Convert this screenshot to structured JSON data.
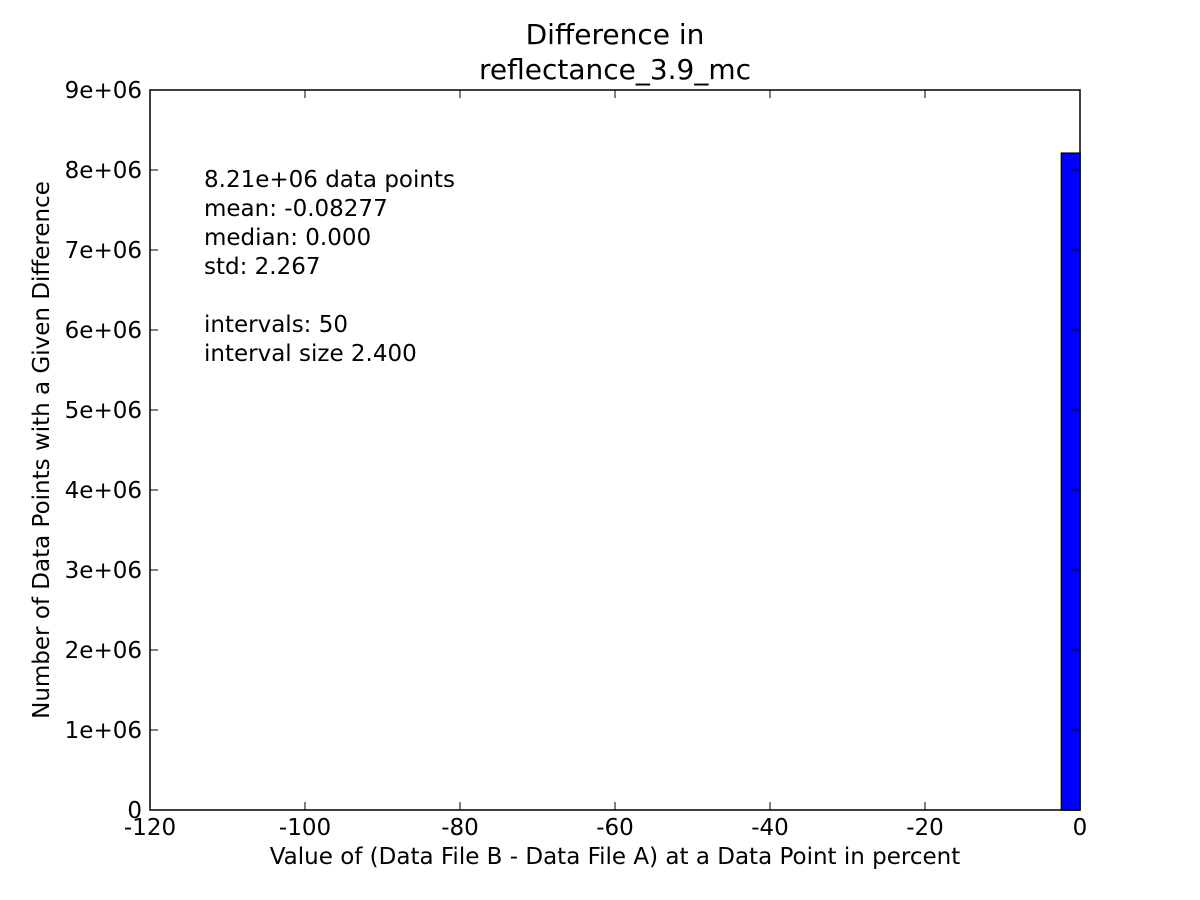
{
  "chart_data": {
    "type": "bar",
    "title_lines": [
      "Difference in",
      "reflectance_3.9_mc"
    ],
    "xlabel": "Value of (Data File B - Data File A) at a Data Point in percent",
    "ylabel": "Number of Data Points with a Given Difference",
    "xlim": [
      -120,
      0
    ],
    "ylim": [
      0,
      9000000
    ],
    "x_ticks": [
      -120,
      -100,
      -80,
      -60,
      -40,
      -20,
      0
    ],
    "x_tick_labels": [
      "-120",
      "-100",
      "-80",
      "-60",
      "-40",
      "-20",
      "0"
    ],
    "y_ticks": [
      0,
      1000000,
      2000000,
      3000000,
      4000000,
      5000000,
      6000000,
      7000000,
      8000000,
      9000000
    ],
    "y_tick_labels": [
      "0",
      "1e+06",
      "2e+06",
      "3e+06",
      "4e+06",
      "5e+06",
      "6e+06",
      "7e+06",
      "8e+06",
      "9e+06"
    ],
    "bars": [
      {
        "x_start": -2.4,
        "x_end": 0.0,
        "value": 8210000
      }
    ],
    "bar_color": "#0000ff",
    "grid": false,
    "annotation_lines": [
      "8.21e+06 data points",
      "mean: -0.08277",
      "median: 0.000",
      "std: 2.267",
      "",
      "intervals: 50",
      "interval size 2.400"
    ]
  }
}
